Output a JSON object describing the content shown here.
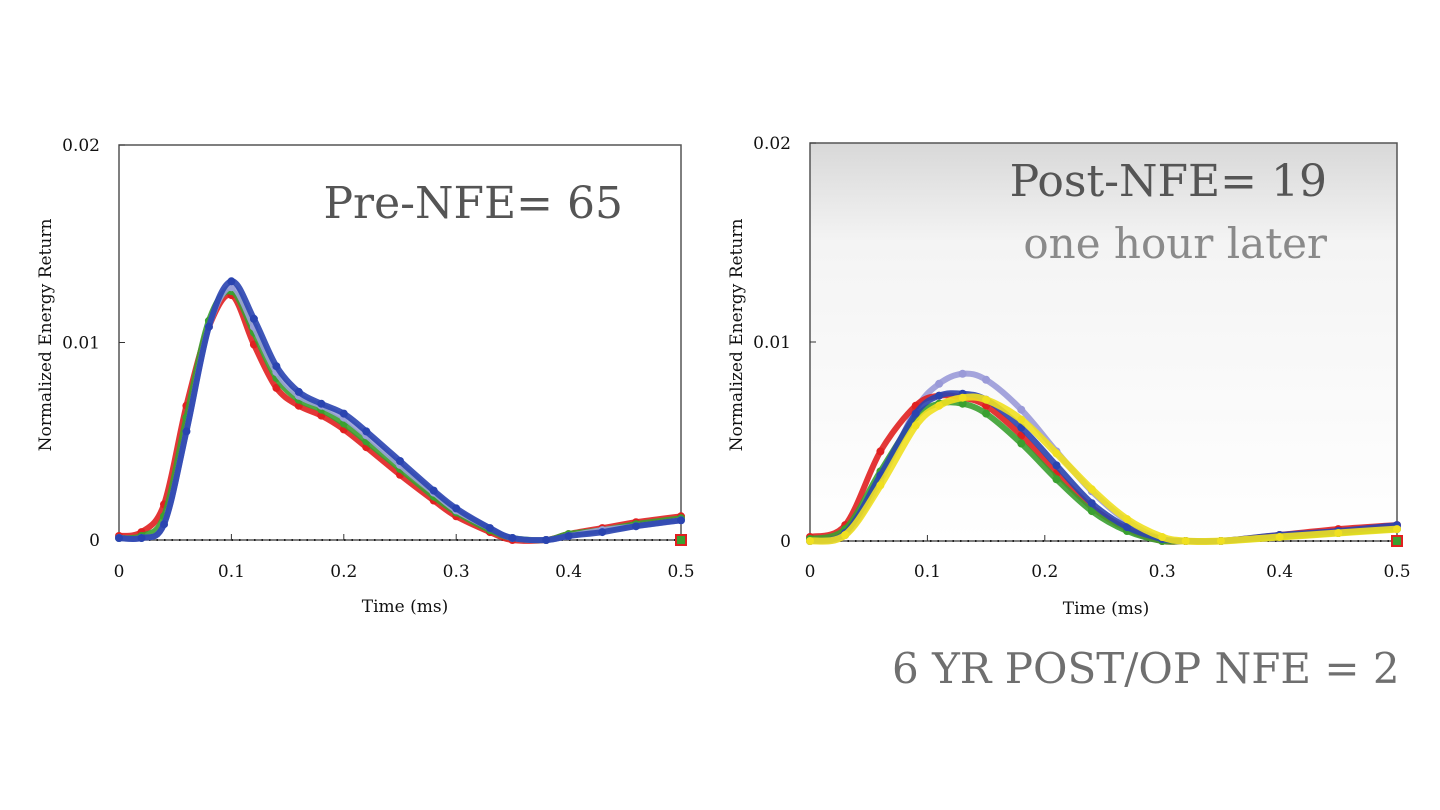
{
  "footer_text": "6 YR POST/OP NFE = 2",
  "chart_data": [
    {
      "type": "line",
      "annotation": "Pre-NFE= 65",
      "subannotation": "",
      "title": "",
      "xlabel": "Time (ms)",
      "ylabel": "Normalized Energy Return",
      "xlim": [
        0,
        0.5
      ],
      "ylim": [
        0,
        0.02
      ],
      "x_ticks": [
        "0",
        "0.1",
        "0.2",
        "0.3",
        "0.4",
        "0.5"
      ],
      "y_ticks": [
        "0",
        "0.01",
        "0.02"
      ],
      "grid": false,
      "series": [
        {
          "color": "#e02020",
          "x": [
            0,
            0.02,
            0.04,
            0.06,
            0.08,
            0.1,
            0.12,
            0.14,
            0.16,
            0.18,
            0.2,
            0.22,
            0.25,
            0.28,
            0.3,
            0.33,
            0.35,
            0.38,
            0.4,
            0.43,
            0.46,
            0.5
          ],
          "y": [
            0.0002,
            0.0004,
            0.0018,
            0.0068,
            0.0108,
            0.0124,
            0.0099,
            0.0077,
            0.0068,
            0.0063,
            0.0056,
            0.0047,
            0.0033,
            0.002,
            0.0012,
            0.0004,
            0,
            0,
            0.0003,
            0.0006,
            0.0009,
            0.0012
          ]
        },
        {
          "color": "#3aa030",
          "x": [
            0,
            0.02,
            0.04,
            0.06,
            0.08,
            0.1,
            0.12,
            0.14,
            0.16,
            0.18,
            0.2,
            0.22,
            0.25,
            0.28,
            0.3,
            0.33,
            0.35,
            0.38,
            0.4,
            0.43,
            0.46,
            0.5
          ],
          "y": [
            0.0001,
            0.0002,
            0.0012,
            0.0062,
            0.0111,
            0.0126,
            0.0105,
            0.0082,
            0.0071,
            0.0066,
            0.0059,
            0.005,
            0.0036,
            0.0022,
            0.0014,
            0.0005,
            0.0001,
            0,
            0.0003,
            0.0005,
            0.0008,
            0.0011
          ]
        },
        {
          "color": "#9aa0d8",
          "x": [
            0,
            0.02,
            0.04,
            0.06,
            0.08,
            0.1,
            0.12,
            0.14,
            0.16,
            0.18,
            0.2,
            0.22,
            0.25,
            0.28,
            0.3,
            0.33,
            0.35,
            0.38,
            0.4,
            0.43,
            0.46,
            0.5
          ],
          "y": [
            0.0001,
            0.0001,
            0.0008,
            0.0055,
            0.0108,
            0.0128,
            0.0108,
            0.0085,
            0.0073,
            0.0068,
            0.0062,
            0.0053,
            0.0038,
            0.0024,
            0.0015,
            0.0006,
            0.0001,
            0,
            0.0002,
            0.0005,
            0.0007,
            0.001
          ]
        },
        {
          "color": "#2a44b0",
          "x": [
            0,
            0.02,
            0.04,
            0.06,
            0.08,
            0.1,
            0.12,
            0.14,
            0.16,
            0.18,
            0.2,
            0.22,
            0.25,
            0.28,
            0.3,
            0.33,
            0.35,
            0.38,
            0.4,
            0.43,
            0.46,
            0.5
          ],
          "y": [
            0.0001,
            0.0001,
            0.0008,
            0.0055,
            0.0108,
            0.0131,
            0.0112,
            0.0088,
            0.0075,
            0.0069,
            0.0064,
            0.0055,
            0.004,
            0.0025,
            0.0016,
            0.0006,
            0.0001,
            0,
            0.0002,
            0.0004,
            0.0007,
            0.001
          ]
        }
      ]
    },
    {
      "type": "line",
      "annotation": "Post-NFE= 19",
      "subannotation": "one hour later",
      "title": "",
      "xlabel": "Time (ms)",
      "ylabel": "Normalized Energy Return",
      "xlim": [
        0,
        0.5
      ],
      "ylim": [
        0,
        0.02
      ],
      "x_ticks": [
        "0",
        "0.1",
        "0.2",
        "0.3",
        "0.4",
        "0.5"
      ],
      "y_ticks": [
        "0",
        "0.01",
        "0.02"
      ],
      "grid": false,
      "series": [
        {
          "color": "#9a9ad8",
          "x": [
            0,
            0.03,
            0.06,
            0.09,
            0.11,
            0.13,
            0.15,
            0.18,
            0.21,
            0.24,
            0.27,
            0.3,
            0.32,
            0.35,
            0.4,
            0.45,
            0.5
          ],
          "y": [
            0,
            0.0003,
            0.003,
            0.0066,
            0.0079,
            0.0084,
            0.0081,
            0.0066,
            0.0045,
            0.0025,
            0.001,
            0.0001,
            0,
            0,
            0.0002,
            0.0004,
            0.0007
          ]
        },
        {
          "color": "#e02020",
          "x": [
            0,
            0.03,
            0.06,
            0.09,
            0.11,
            0.13,
            0.15,
            0.18,
            0.21,
            0.24,
            0.27,
            0.3,
            0.32,
            0.35,
            0.4,
            0.45,
            0.5
          ],
          "y": [
            0.0002,
            0.0008,
            0.0045,
            0.0068,
            0.0073,
            0.0072,
            0.0068,
            0.0053,
            0.0034,
            0.0017,
            0.0006,
            0,
            0,
            0,
            0.0003,
            0.0006,
            0.0008
          ]
        },
        {
          "color": "#3aa030",
          "x": [
            0,
            0.03,
            0.06,
            0.09,
            0.11,
            0.13,
            0.15,
            0.18,
            0.21,
            0.24,
            0.27,
            0.3,
            0.32,
            0.35,
            0.4,
            0.45,
            0.5
          ],
          "y": [
            0.0001,
            0.0006,
            0.0035,
            0.0062,
            0.0069,
            0.0069,
            0.0064,
            0.0049,
            0.0031,
            0.0015,
            0.0005,
            0,
            0,
            0,
            0.0002,
            0.0004,
            0.0006
          ]
        },
        {
          "color": "#2a44b0",
          "x": [
            0,
            0.03,
            0.06,
            0.09,
            0.11,
            0.13,
            0.15,
            0.18,
            0.21,
            0.24,
            0.27,
            0.3,
            0.32,
            0.35,
            0.4,
            0.45,
            0.5
          ],
          "y": [
            0,
            0.0004,
            0.0033,
            0.0064,
            0.0073,
            0.0074,
            0.0071,
            0.0057,
            0.0038,
            0.0019,
            0.0007,
            0.0001,
            0,
            0,
            0.0003,
            0.0005,
            0.0008
          ]
        },
        {
          "color": "#f0e020",
          "x": [
            0,
            0.03,
            0.06,
            0.09,
            0.11,
            0.13,
            0.15,
            0.18,
            0.21,
            0.24,
            0.27,
            0.3,
            0.32,
            0.35,
            0.4,
            0.45,
            0.5
          ],
          "y": [
            0,
            0.0003,
            0.0028,
            0.0058,
            0.0068,
            0.0072,
            0.0071,
            0.0061,
            0.0044,
            0.0026,
            0.0011,
            0.0002,
            0,
            0,
            0.0002,
            0.0004,
            0.0006
          ]
        }
      ]
    }
  ]
}
